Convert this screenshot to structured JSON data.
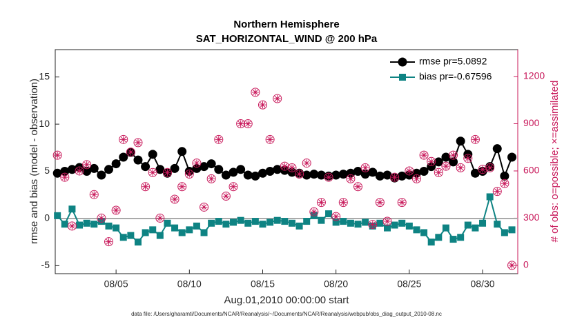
{
  "chart_data": {
    "type": "line",
    "title": "Northern Hemisphere",
    "subtitle": "SAT_HORIZONTAL_WIND @ 200 hPa",
    "y_label": "rmse and bias (model - observation)",
    "y2_label": "# of obs: o=possible; ×=assimilated",
    "x_label": "Aug.01,2010 00:00:00 start",
    "footnote": "data file: /Users/gharamti/Documents/NCAR/Reanalysis/~/Documents/NCAR/Reanalysis/webpub/obs_diag_output_2010-08.nc",
    "x": [
      1,
      1.5,
      2,
      2.5,
      3,
      3.5,
      4,
      4.5,
      5,
      5.5,
      6,
      6.5,
      7,
      7.5,
      8,
      8.5,
      9,
      9.5,
      10,
      10.5,
      11,
      11.5,
      12,
      12.5,
      13,
      13.5,
      14,
      14.5,
      15,
      15.5,
      16,
      16.5,
      17,
      17.5,
      18,
      18.5,
      19,
      19.5,
      20,
      20.5,
      21,
      21.5,
      22,
      22.5,
      23,
      23.5,
      24,
      24.5,
      25,
      25.5,
      26,
      26.5,
      27,
      27.5,
      28,
      28.5,
      29,
      29.5,
      30,
      30.5,
      31,
      31.5,
      32
    ],
    "xlim": [
      0.85,
      32.4
    ],
    "xticks": [
      {
        "value": 5,
        "label": "08/05"
      },
      {
        "value": 10,
        "label": "08/10"
      },
      {
        "value": 15,
        "label": "08/15"
      },
      {
        "value": 20,
        "label": "08/20"
      },
      {
        "value": 25,
        "label": "08/25"
      },
      {
        "value": 30,
        "label": "08/30"
      }
    ],
    "ylim": [
      -5.85,
      17.9
    ],
    "yticks": [
      -5,
      0,
      5,
      10,
      15
    ],
    "y2lim": [
      -53,
      1371
    ],
    "y2ticks": [
      0,
      300,
      600,
      900,
      1200
    ],
    "y2_color": "#c8185a",
    "reference_line": 0,
    "legend": "upper right",
    "series": [
      {
        "name": "rmse pr=5.0892",
        "color": "#000000",
        "marker": "circle",
        "values": [
          4.8,
          5.0,
          5.2,
          5.4,
          5.0,
          5.3,
          4.6,
          5.2,
          5.8,
          6.5,
          7.0,
          6.2,
          5.5,
          6.8,
          5.2,
          4.8,
          5.3,
          7.1,
          5.0,
          5.3,
          5.5,
          5.8,
          5.2,
          4.6,
          4.9,
          5.2,
          4.6,
          4.5,
          4.8,
          5.0,
          5.2,
          5.1,
          4.9,
          4.8,
          4.6,
          4.7,
          4.6,
          4.5,
          4.6,
          4.7,
          4.8,
          5.0,
          4.7,
          4.9,
          4.5,
          4.6,
          4.3,
          4.5,
          4.6,
          4.8,
          5.0,
          5.5,
          6.0,
          6.5,
          6.0,
          8.2,
          6.8,
          4.8,
          5.0,
          5.5,
          7.4,
          4.5,
          6.5
        ]
      },
      {
        "name": "bias pr=-0.67596",
        "color": "#0e8383",
        "marker": "square",
        "values": [
          0.3,
          -0.6,
          1.0,
          -0.7,
          -0.5,
          -0.6,
          -0.3,
          -0.8,
          -1.0,
          -2.0,
          -1.8,
          -2.5,
          -1.5,
          -1.2,
          -1.8,
          -0.5,
          -1.0,
          -1.5,
          -1.2,
          -0.8,
          -1.5,
          -0.5,
          -0.3,
          -0.6,
          -0.4,
          -0.2,
          -0.5,
          -0.3,
          -0.6,
          -0.4,
          -0.2,
          -0.3,
          -0.5,
          -0.8,
          -0.3,
          0.3,
          -0.2,
          0.5,
          -0.4,
          -0.3,
          -0.5,
          -0.6,
          -0.4,
          -0.8,
          -0.5,
          -1.0,
          -0.7,
          -0.5,
          -0.8,
          -1.2,
          -1.5,
          -2.5,
          -2.0,
          -1.0,
          -2.2,
          -2.0,
          -0.7,
          -1.0,
          -0.5,
          2.3,
          -0.6,
          -1.5,
          -1.2
        ]
      },
      {
        "color": "#c8185a",
        "marker": "circle-open",
        "axis": "y2",
        "values": [
          700,
          560,
          250,
          600,
          640,
          450,
          300,
          150,
          350,
          800,
          720,
          780,
          500,
          590,
          300,
          590,
          420,
          500,
          580,
          650,
          370,
          550,
          800,
          440,
          500,
          900,
          900,
          1100,
          1020,
          800,
          1060,
          630,
          620,
          580,
          650,
          340,
          400,
          560,
          310,
          400,
          550,
          500,
          620,
          260,
          400,
          280,
          560,
          400,
          600,
          550,
          700,
          660,
          590,
          630,
          700,
          620,
          680,
          800,
          610,
          620,
          470,
          520,
          0
        ]
      },
      {
        "color": "#c8185a",
        "marker": "asterisk",
        "axis": "y2",
        "values": [
          700,
          560,
          250,
          600,
          640,
          450,
          300,
          150,
          350,
          800,
          720,
          780,
          500,
          590,
          300,
          590,
          420,
          500,
          580,
          650,
          370,
          550,
          800,
          440,
          500,
          900,
          900,
          1100,
          1020,
          800,
          1060,
          630,
          620,
          580,
          650,
          340,
          400,
          560,
          310,
          400,
          550,
          500,
          620,
          260,
          400,
          280,
          560,
          400,
          600,
          550,
          700,
          660,
          590,
          630,
          700,
          620,
          680,
          800,
          610,
          620,
          470,
          520,
          0
        ]
      }
    ]
  }
}
